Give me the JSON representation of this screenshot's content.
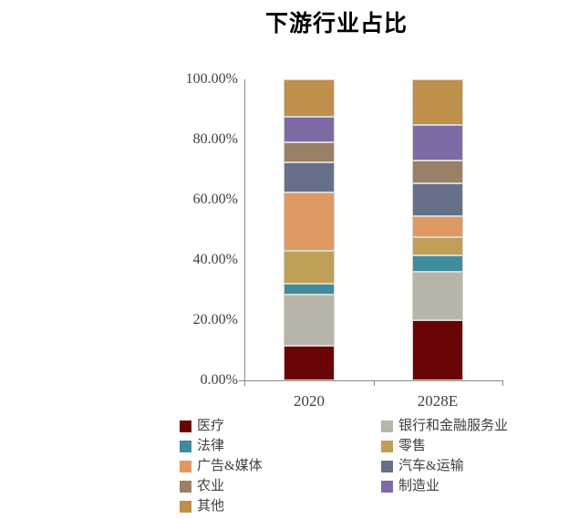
{
  "title": "下游行业占比",
  "chart_data": {
    "type": "bar",
    "stacked": true,
    "title": "下游行业占比",
    "xlabel": "",
    "ylabel": "",
    "ylim": [
      0,
      100
    ],
    "y_ticks": [
      "0.00%",
      "20.00%",
      "40.00%",
      "60.00%",
      "80.00%",
      "100.00%"
    ],
    "grid": false,
    "legend_position": "bottom",
    "legend_columns": 2,
    "categories": [
      "2020",
      "2028E"
    ],
    "series": [
      {
        "name": "医疗",
        "color": "#6A0505",
        "values": [
          11.5,
          20.0
        ]
      },
      {
        "name": "银行和金融服务业",
        "color": "#B7B5A9",
        "values": [
          17.0,
          16.0
        ]
      },
      {
        "name": "法律",
        "color": "#3E8C9E",
        "values": [
          3.5,
          5.5
        ]
      },
      {
        "name": "零售",
        "color": "#BFA056",
        "values": [
          11.0,
          6.0
        ]
      },
      {
        "name": "广告&媒体",
        "color": "#DE9A62",
        "values": [
          19.5,
          7.0
        ]
      },
      {
        "name": "汽车&运输",
        "color": "#66708A",
        "values": [
          10.0,
          11.0
        ]
      },
      {
        "name": "农业",
        "color": "#998066",
        "values": [
          6.5,
          7.5
        ]
      },
      {
        "name": "制造业",
        "color": "#7E6AA5",
        "values": [
          8.5,
          12.0
        ]
      },
      {
        "name": "其他",
        "color": "#BF8F4C",
        "values": [
          12.5,
          15.0
        ]
      }
    ]
  },
  "colors": {
    "axis": "#898989",
    "tick_text": "#404040",
    "title_text": "#000000",
    "segment_border": "#D8D5CC",
    "background": "#FFFFFF"
  }
}
